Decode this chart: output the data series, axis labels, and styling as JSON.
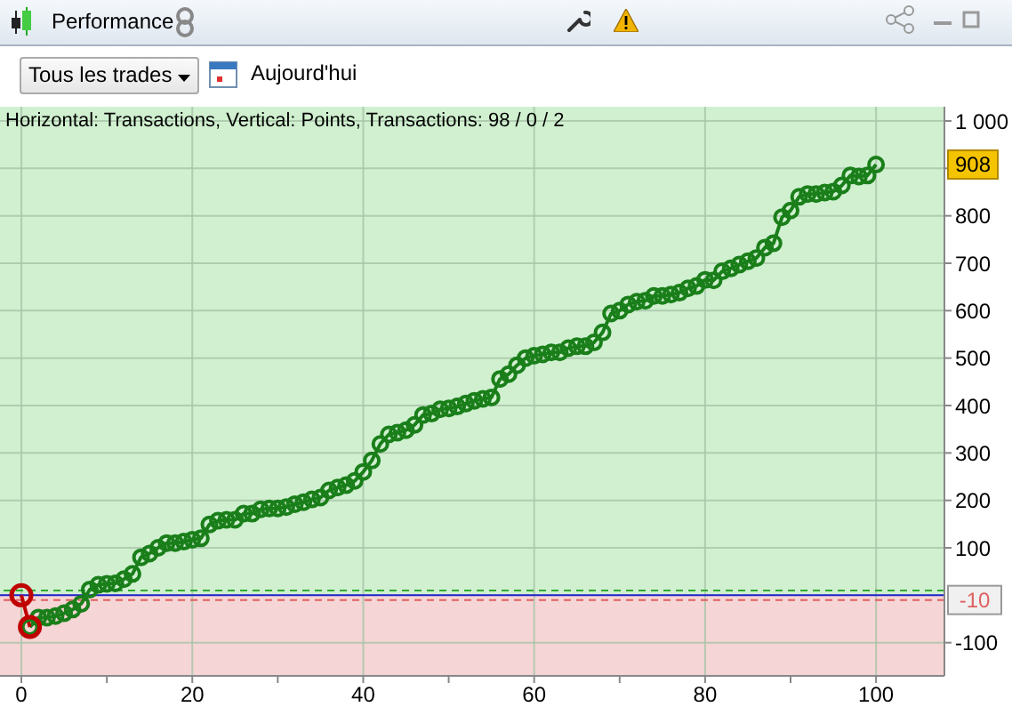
{
  "chart_data": {
    "type": "line",
    "title": "Horizontal: Transactions, Vertical: Points, Transactions: 98 / 0 / 2",
    "annotations": [
      "Performance",
      "Tous les trades",
      "Aujourd'hui",
      "908"
    ],
    "series": [
      {
        "color": "#1a7f1a",
        "x": [
          1,
          2,
          3,
          4,
          5,
          6,
          7,
          8,
          9,
          10,
          11,
          12,
          13,
          14,
          15,
          16,
          17,
          18,
          19,
          20,
          21,
          22,
          23,
          24,
          25,
          26,
          27,
          28,
          29,
          30,
          31,
          32,
          33,
          34,
          35,
          36,
          37,
          38,
          39,
          40,
          41,
          42,
          43,
          44,
          45,
          46,
          47,
          48,
          49,
          50,
          51,
          52,
          53,
          54,
          55,
          56,
          57,
          58,
          59,
          60,
          61,
          62,
          63,
          64,
          65,
          66,
          67,
          68,
          69,
          70,
          71,
          72,
          73,
          74,
          75,
          76,
          77,
          78,
          79,
          80,
          81,
          82,
          83,
          84,
          85,
          86,
          87,
          88,
          89,
          90,
          91,
          92,
          93,
          94,
          95,
          96,
          97,
          98,
          99,
          100
        ],
        "values": [
          -67,
          -47,
          -47,
          -44,
          -38,
          -30,
          -18,
          12,
          22,
          24,
          25,
          34,
          45,
          80,
          88,
          100,
          110,
          110,
          113,
          117,
          120,
          149,
          157,
          159,
          159,
          172,
          172,
          181,
          183,
          183,
          186,
          192,
          196,
          202,
          206,
          221,
          227,
          232,
          241,
          260,
          284,
          319,
          339,
          343,
          348,
          359,
          380,
          383,
          392,
          394,
          398,
          404,
          410,
          414,
          417,
          456,
          466,
          485,
          500,
          505,
          508,
          512,
          512,
          521,
          525,
          525,
          533,
          554,
          594,
          600,
          613,
          619,
          621,
          631,
          631,
          634,
          638,
          647,
          652,
          665,
          664,
          683,
          689,
          697,
          704,
          711,
          733,
          742,
          797,
          811,
          840,
          846,
          846,
          849,
          851,
          864,
          885,
          883,
          885,
          908
        ]
      },
      {
        "color": "#c00000",
        "x": [
          0,
          1
        ],
        "values": [
          0,
          -67
        ]
      }
    ],
    "xlim": [
      -2.5,
      108
    ],
    "xticks": [
      0,
      {
        "value": 10,
        "label": null
      },
      20,
      {
        "value": 30,
        "label": null
      },
      40,
      {
        "value": 50,
        "label": null
      },
      60,
      {
        "value": 70,
        "label": null
      },
      80,
      {
        "value": 90,
        "label": null
      },
      100
    ],
    "ylim": [
      -170,
      1030
    ],
    "yticks": [
      -100,
      100,
      200,
      300,
      400,
      500,
      600,
      700,
      800,
      {
        "value": 900,
        "label": null
      },
      {
        "value": 1000,
        "label": "1 000"
      }
    ],
    "grid": true,
    "marker": "circle",
    "line_style": "solid",
    "ref_lines": [
      {
        "axis": "y",
        "value": 10,
        "color": "#33aa33",
        "line_style": "dashed"
      },
      {
        "axis": "y",
        "value": 0,
        "color": "#2020cc",
        "line_style": "solid"
      },
      {
        "axis": "y",
        "value": -10,
        "label": "-10",
        "color": "#e06060",
        "line_style": "dashed"
      }
    ],
    "bands": [
      {
        "axis": "y",
        "from": 0,
        "to": 1030,
        "color": "#d0f0d0"
      },
      {
        "axis": "y",
        "from": -170,
        "to": 0,
        "color": "#f5d5d5"
      }
    ]
  }
}
